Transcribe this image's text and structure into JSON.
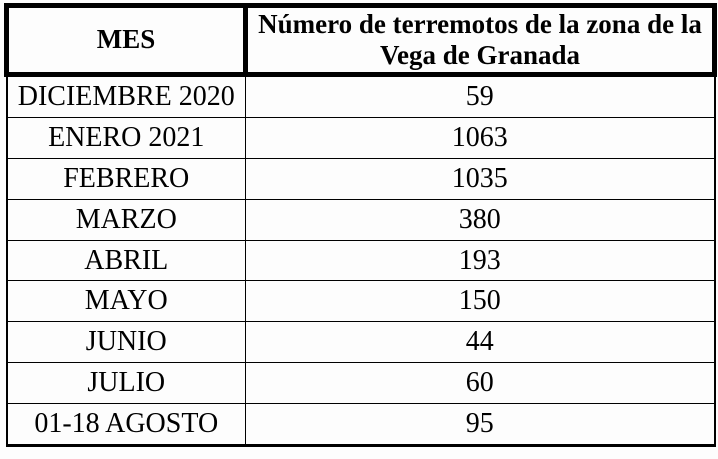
{
  "colors": {
    "background": "#fdfdfd",
    "border": "#000000",
    "text": "#000000"
  },
  "table": {
    "header": {
      "col1": "MES",
      "col2": "Número de terremotos de la zona de la Vega de Granada"
    },
    "rows": [
      {
        "mes": "DICIEMBRE 2020",
        "numero": "59"
      },
      {
        "mes": "ENERO 2021",
        "numero": "1063"
      },
      {
        "mes": "FEBRERO",
        "numero": "1035"
      },
      {
        "mes": "MARZO",
        "numero": "380"
      },
      {
        "mes": "ABRIL",
        "numero": "193"
      },
      {
        "mes": "MAYO",
        "numero": "150"
      },
      {
        "mes": "JUNIO",
        "numero": "44"
      },
      {
        "mes": "JULIO",
        "numero": "60"
      },
      {
        "mes": "01-18 AGOSTO",
        "numero": "95"
      }
    ]
  }
}
